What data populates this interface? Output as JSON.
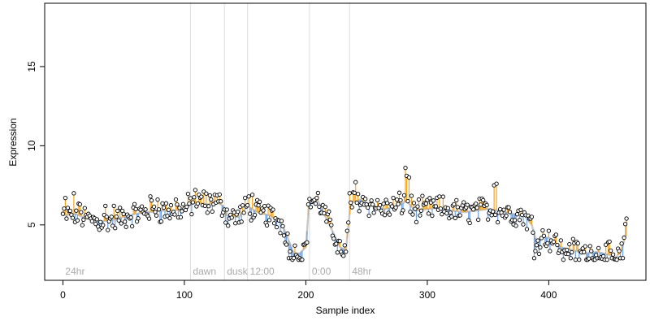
{
  "chart_data": {
    "type": "scatter",
    "xlabel": "Sample index",
    "ylabel": "Expression",
    "xlim": [
      -15,
      480
    ],
    "ylim": [
      1.5,
      19
    ],
    "xticks": [
      0,
      100,
      200,
      300,
      400
    ],
    "yticks": [
      5,
      10,
      15
    ],
    "grid": false,
    "colors": {
      "point_stroke": "#000000",
      "point_fill": "#ffffff",
      "residual_positive": "#f5a623",
      "residual_negative": "#6fa0e0",
      "fit_line": "#c8c8c8",
      "period_line": "#dddddd",
      "period_label": "#aaaaaa"
    },
    "periods": [
      {
        "label": "24hr",
        "x": 0
      },
      {
        "label": "dawn",
        "x": 105
      },
      {
        "label": "dusk",
        "x": 133
      },
      {
        "label": "12:00",
        "x": 152
      },
      {
        "label": "0:00",
        "x": 203
      },
      {
        "label": "48hr",
        "x": 236
      }
    ],
    "anchors": [
      [
        0,
        5.6
      ],
      [
        10,
        5.7
      ],
      [
        20,
        5.4
      ],
      [
        30,
        5.2
      ],
      [
        40,
        5.3
      ],
      [
        50,
        5.5
      ],
      [
        60,
        5.7
      ],
      [
        70,
        5.8
      ],
      [
        80,
        5.9
      ],
      [
        90,
        5.9
      ],
      [
        100,
        6.0
      ],
      [
        105,
        6.3
      ],
      [
        110,
        6.4
      ],
      [
        120,
        6.3
      ],
      [
        125,
        6.5
      ],
      [
        132,
        6.2
      ],
      [
        135,
        5.6
      ],
      [
        145,
        5.5
      ],
      [
        152,
        6.2
      ],
      [
        160,
        5.8
      ],
      [
        170,
        5.6
      ],
      [
        180,
        5.1
      ],
      [
        185,
        4.2
      ],
      [
        190,
        3.2
      ],
      [
        195,
        3.2
      ],
      [
        200,
        3.6
      ],
      [
        203,
        6.6
      ],
      [
        210,
        6.5
      ],
      [
        215,
        5.7
      ],
      [
        222,
        4.6
      ],
      [
        228,
        3.6
      ],
      [
        233,
        3.4
      ],
      [
        237,
        6.4
      ],
      [
        245,
        6.6
      ],
      [
        255,
        6.2
      ],
      [
        265,
        6.0
      ],
      [
        275,
        6.2
      ],
      [
        283,
        6.5
      ],
      [
        290,
        5.9
      ],
      [
        300,
        6.0
      ],
      [
        310,
        6.1
      ],
      [
        320,
        5.9
      ],
      [
        330,
        5.8
      ],
      [
        340,
        5.9
      ],
      [
        350,
        6.0
      ],
      [
        360,
        5.9
      ],
      [
        370,
        5.7
      ],
      [
        380,
        5.6
      ],
      [
        386,
        5.0
      ],
      [
        390,
        3.9
      ],
      [
        395,
        4.2
      ],
      [
        400,
        4.2
      ],
      [
        410,
        3.6
      ],
      [
        420,
        3.4
      ],
      [
        430,
        3.2
      ],
      [
        440,
        3.3
      ],
      [
        450,
        3.1
      ],
      [
        455,
        2.9
      ],
      [
        460,
        3.4
      ],
      [
        463,
        4.3
      ]
    ],
    "highlights": [
      [
        2,
        6.7
      ],
      [
        9,
        7.0
      ],
      [
        14,
        6.3
      ],
      [
        35,
        6.2
      ],
      [
        42,
        6.2
      ],
      [
        72,
        6.8
      ],
      [
        78,
        6.6
      ],
      [
        93,
        6.6
      ],
      [
        109,
        7.2
      ],
      [
        116,
        7.1
      ],
      [
        125,
        6.9
      ],
      [
        153,
        6.8
      ],
      [
        156,
        6.9
      ],
      [
        209,
        6.7
      ],
      [
        236,
        7.0
      ],
      [
        241,
        7.7
      ],
      [
        282,
        8.6
      ],
      [
        283,
        8.1
      ],
      [
        285,
        8.0
      ],
      [
        355,
        7.5
      ],
      [
        357,
        7.6
      ],
      [
        464,
        5.4
      ]
    ],
    "lows": [
      [
        186,
        2.9
      ],
      [
        188,
        2.9
      ],
      [
        192,
        3.1
      ],
      [
        196,
        2.8
      ],
      [
        229,
        3.3
      ],
      [
        233,
        3.3
      ],
      [
        388,
        2.9
      ],
      [
        412,
        2.8
      ],
      [
        418,
        2.9
      ],
      [
        425,
        2.8
      ],
      [
        436,
        2.9
      ],
      [
        440,
        2.9
      ],
      [
        442,
        2.9
      ],
      [
        448,
        2.8
      ],
      [
        452,
        2.9
      ],
      [
        456,
        2.8
      ],
      [
        459,
        2.9
      ],
      [
        461,
        2.9
      ]
    ]
  }
}
